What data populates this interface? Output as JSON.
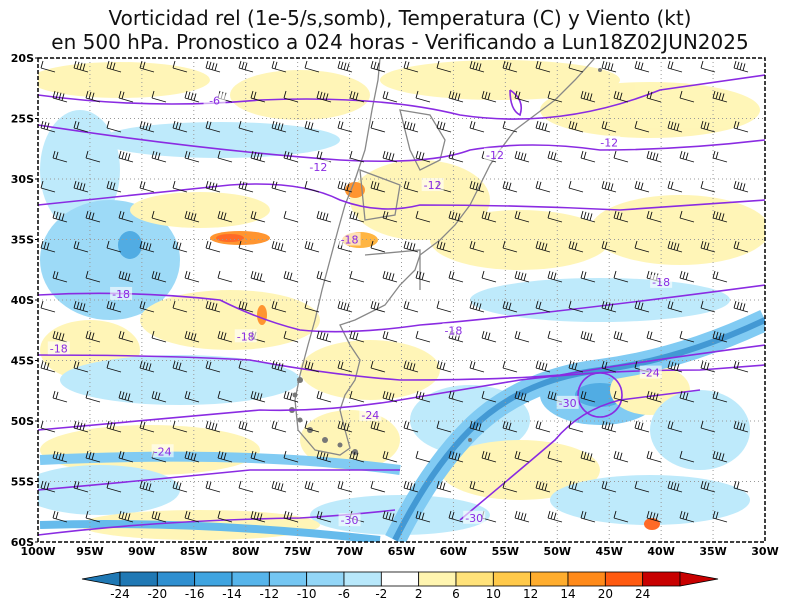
{
  "title_line1": "Vorticidad rel (1e-5/s,somb), Temperatura (C) y Viento (kt)",
  "title_line2": "en 500 hPa. Pronostico a 024 horas - Verificando a Lun18Z02JUN2025",
  "lat_labels": [
    "20S",
    "25S",
    "30S",
    "35S",
    "40S",
    "45S",
    "50S",
    "55S",
    "60S"
  ],
  "lat_values": [
    -20,
    -25,
    -30,
    -35,
    -40,
    -45,
    -50,
    -55,
    -60
  ],
  "lon_labels": [
    "100W",
    "95W",
    "90W",
    "85W",
    "80W",
    "75W",
    "70W",
    "65W",
    "60W",
    "55W",
    "50W",
    "45W",
    "40W",
    "35W",
    "30W"
  ],
  "lon_values": [
    -100,
    -95,
    -90,
    -85,
    -80,
    -75,
    -70,
    -65,
    -60,
    -55,
    -50,
    -45,
    -40,
    -35,
    -30
  ],
  "colorbar": {
    "labels": [
      "-24",
      "-20",
      "-16",
      "-14",
      "-12",
      "-10",
      "-6",
      "-2",
      "2",
      "6",
      "10",
      "12",
      "14",
      "20",
      "24"
    ],
    "colors": [
      "#1f78b4",
      "#2f8fd0",
      "#3fa4e0",
      "#56b4ea",
      "#74c6f2",
      "#93d6f7",
      "#b8e8fb",
      "#ffffff",
      "#fff5b0",
      "#ffe27a",
      "#ffc94a",
      "#ffad2e",
      "#ff8a1a",
      "#ff5a10",
      "#c80000"
    ]
  },
  "temperature_labels": [
    {
      "text": "-6",
      "lon": -83,
      "lat": -23.5
    },
    {
      "text": "-12",
      "lon": -73,
      "lat": -29
    },
    {
      "text": "-12",
      "lon": -62,
      "lat": -30.5
    },
    {
      "text": "-12",
      "lon": -56,
      "lat": -28
    },
    {
      "text": "-12",
      "lon": -45,
      "lat": -27
    },
    {
      "text": "-18",
      "lon": -70,
      "lat": -35
    },
    {
      "text": "-18",
      "lon": -40,
      "lat": -38.5
    },
    {
      "text": "-18",
      "lon": -92,
      "lat": -39.5
    },
    {
      "text": "-18",
      "lon": -98,
      "lat": -44
    },
    {
      "text": "-18",
      "lon": -80,
      "lat": -43
    },
    {
      "text": "-18",
      "lon": -60,
      "lat": -42.5
    },
    {
      "text": "-24",
      "lon": -41,
      "lat": -46
    },
    {
      "text": "-24",
      "lon": -68,
      "lat": -49.5
    },
    {
      "text": "-24",
      "lon": -88,
      "lat": -52.5
    },
    {
      "text": "-30",
      "lon": -49,
      "lat": -48.5
    },
    {
      "text": "-30",
      "lon": -70,
      "lat": -58.2
    },
    {
      "text": "-30",
      "lon": -58,
      "lat": -58
    }
  ]
}
